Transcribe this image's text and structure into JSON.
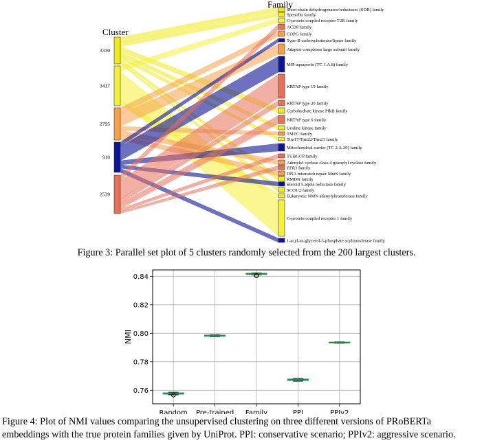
{
  "figure3": {
    "caption": "Figure 3: Parallel set plot of 5 clusters randomly selected from the 200 largest clusters.",
    "left_axis_title": "Cluster",
    "right_axis_title": "Family",
    "clusters": [
      {
        "id": "3330",
        "color": "#f1ea1e"
      },
      {
        "id": "3417",
        "color": "#f5f13a"
      },
      {
        "id": "2795",
        "color": "#f5a04a"
      },
      {
        "id": "910",
        "color": "#0b1396"
      },
      {
        "id": "2539",
        "color": "#e8705a"
      }
    ],
    "families": [
      {
        "name": "Short-chain dehydrogenases/reductases (SDR) family",
        "color": "#f1ea1e"
      },
      {
        "name": "Spenolin family",
        "color": "#f1ea1e"
      },
      {
        "name": "G-protein coupled receptor T2R family",
        "color": "#f5f13a"
      },
      {
        "name": "ACDP family",
        "color": "#e8705a"
      },
      {
        "name": "COPG family",
        "color": "#f5a04a"
      },
      {
        "name": "Type-B carboxylesterase/lipase family",
        "color": "#0b1396"
      },
      {
        "name": "Adaptor complexes large subunit family",
        "color": "#f5a04a"
      },
      {
        "name": "MIP aquaporin (TC 1.A.8) family",
        "color": "#0b1396"
      },
      {
        "name": "KRTAP type 19 family",
        "color": "#e8705a"
      },
      {
        "name": "KRTAP type 20 family",
        "color": "#e8705a"
      },
      {
        "name": "Carbohydrate kinase PfkB family",
        "color": "#f1ea1e"
      },
      {
        "name": "KRTAP type 6 family",
        "color": "#e8705a"
      },
      {
        "name": "Uridine kinase family",
        "color": "#f1ea1e"
      },
      {
        "name": "TMTC family",
        "color": "#f5a04a"
      },
      {
        "name": "Tim17/Tim22/Tim23 family",
        "color": "#f1ea1e"
      },
      {
        "name": "Mitochondrial carrier (TC 2.A.29) family",
        "color": "#0b1396"
      },
      {
        "name": "TUBGCP family",
        "color": "#e8705a"
      },
      {
        "name": "Adenylyl cyclase class-4 guanylyl cyclase family",
        "color": "#f5a04a"
      },
      {
        "name": "EFR3 family",
        "color": "#e8705a"
      },
      {
        "name": "DNA mismatch repair MutS family",
        "color": "#f5a04a"
      },
      {
        "name": "RMDN family",
        "color": "#f1ea1e"
      },
      {
        "name": "Steroid 5-alpha reductase family",
        "color": "#0b1396"
      },
      {
        "name": "SCO1/2 family",
        "color": "#f1ea1e"
      },
      {
        "name": "Eukaryotic NMN adenylyltransferase family",
        "color": "#f1ea1e"
      },
      {
        "name": "G-protein coupled receptor 1 family",
        "color": "#f5f13a"
      },
      {
        "name": "1-acyl-sn-glycerol-3-phosphate acyltransferase family",
        "color": "#0b1396"
      }
    ]
  },
  "figure4": {
    "caption_line1": "Figure 4:  Plot of NMI values comparing the unsupervised clustering on three different versions of PRoBERTa",
    "caption_line2": "embeddings with the true protein families given by UniProt. PPI: conservative scenario; PPIv2: aggressive scenario.",
    "chart_data": {
      "type": "box",
      "categories": [
        "Random",
        "Pre-trained",
        "Family",
        "PPI",
        "PPIv2"
      ],
      "median": [
        0.7578,
        0.7983,
        0.8417,
        0.7674,
        0.7935
      ],
      "q1": [
        0.7573,
        0.7979,
        0.8413,
        0.7669,
        0.7932
      ],
      "q3": [
        0.7582,
        0.7987,
        0.8421,
        0.7679,
        0.7938
      ],
      "whisker_low": [
        0.7568,
        0.7976,
        0.841,
        0.7664,
        0.793
      ],
      "whisker_high": [
        0.7586,
        0.799,
        0.8424,
        0.7683,
        0.794
      ],
      "outliers": [
        [
          0.7566
        ],
        [],
        [
          0.8404,
          0.8406
        ],
        [],
        []
      ],
      "xlabel": "",
      "ylabel": "NMI",
      "yticks": [
        0.76,
        0.78,
        0.8,
        0.82,
        0.84
      ],
      "ylim": [
        0.7505,
        0.8445
      ],
      "grid": true,
      "box_color": "#2ca7a0",
      "median_color": "#2a7a2a",
      "grid_color": "#b0b0b0"
    }
  }
}
